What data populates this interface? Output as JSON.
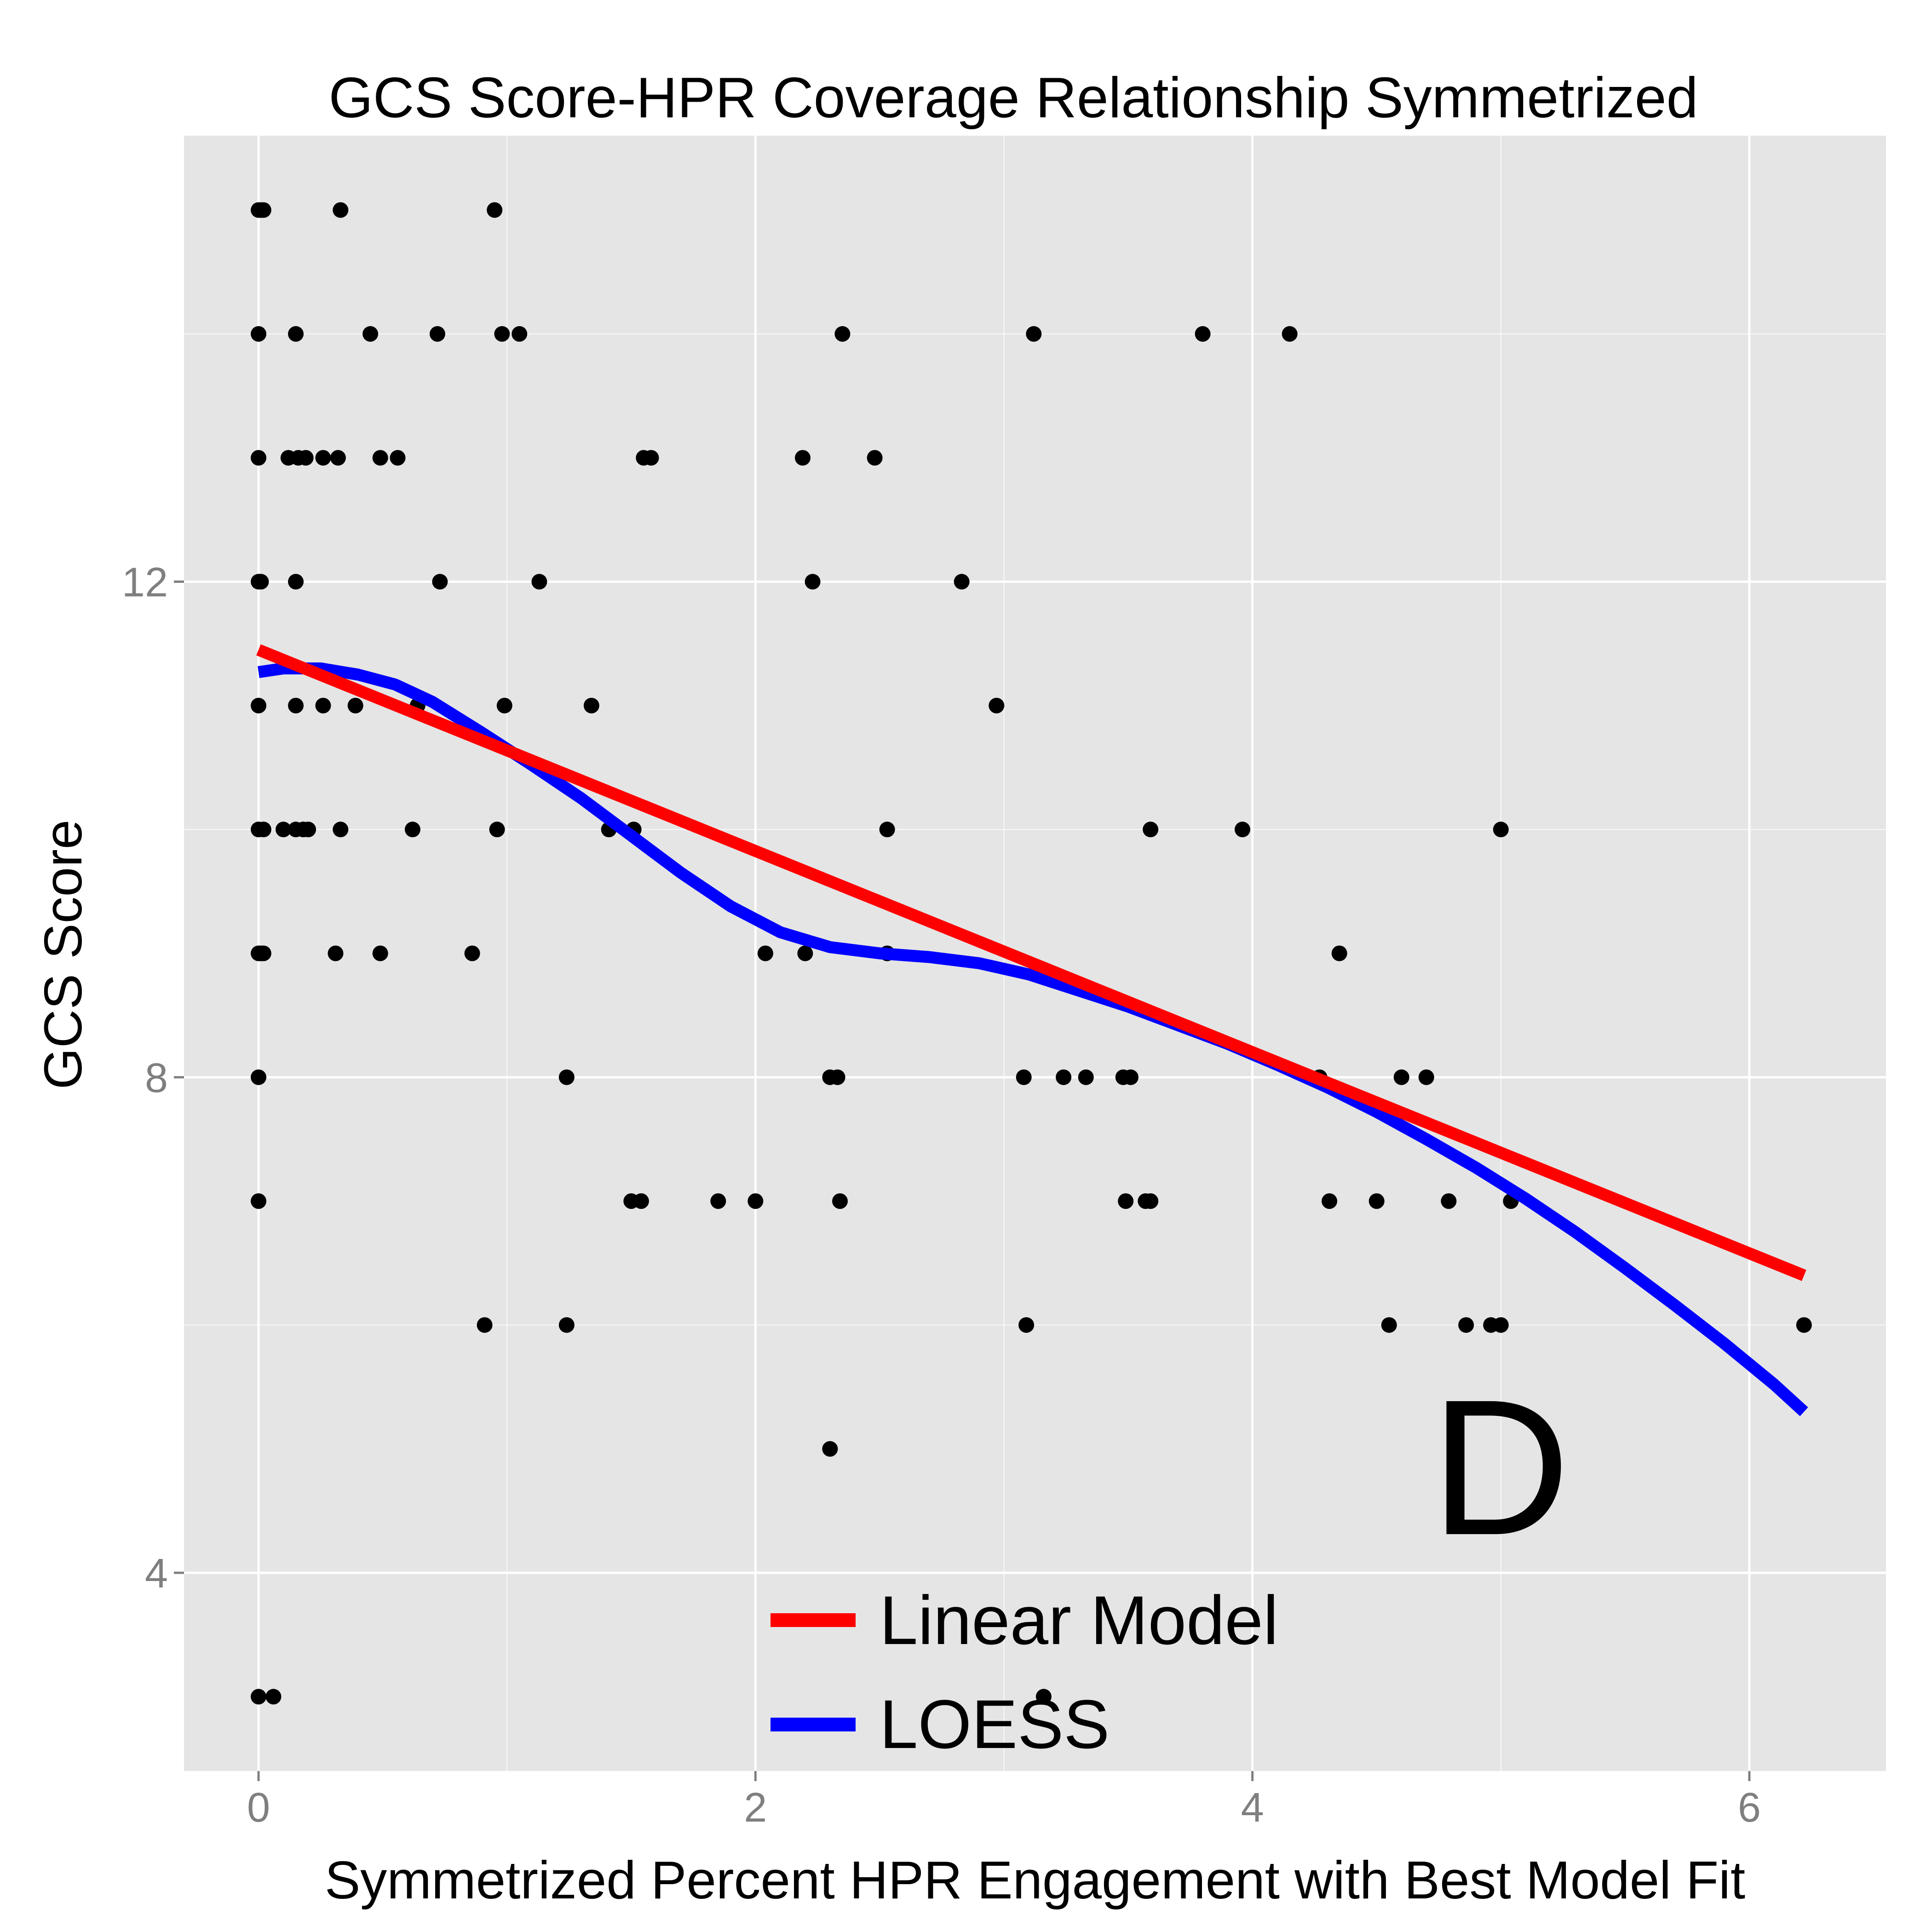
{
  "chart_data": {
    "type": "scatter",
    "title": "GCS Score-HPR Coverage Relationship Symmetrized",
    "xlabel": "Symmetrized Percent HPR Engagement with Best Model Fit",
    "ylabel": "GCS Score",
    "xlim": [
      -0.3,
      6.55
    ],
    "ylim": [
      2.4,
      15.6
    ],
    "x_ticks": [
      0,
      2,
      4,
      6
    ],
    "y_ticks": [
      4,
      8,
      12
    ],
    "grid": true,
    "panel_label": "D",
    "colors": {
      "panel_bg": "#e5e5e5",
      "grid": "#ffffff",
      "points": "#000000",
      "linear": "#ff0000",
      "loess": "#0000ff",
      "tick_text": "#7f7f7f"
    },
    "points": [
      [
        0.0,
        15
      ],
      [
        0.01,
        15
      ],
      [
        0.02,
        15
      ],
      [
        0.33,
        15
      ],
      [
        0.95,
        15
      ],
      [
        0.0,
        14
      ],
      [
        0.15,
        14
      ],
      [
        0.45,
        14
      ],
      [
        0.72,
        14
      ],
      [
        0.98,
        14
      ],
      [
        1.05,
        14
      ],
      [
        2.35,
        14
      ],
      [
        3.12,
        14
      ],
      [
        3.8,
        14
      ],
      [
        4.15,
        14
      ],
      [
        0.0,
        13
      ],
      [
        0.12,
        13
      ],
      [
        0.16,
        13
      ],
      [
        0.19,
        13
      ],
      [
        0.26,
        13
      ],
      [
        0.32,
        13
      ],
      [
        0.49,
        13
      ],
      [
        0.56,
        13
      ],
      [
        1.55,
        13
      ],
      [
        1.58,
        13
      ],
      [
        2.19,
        13
      ],
      [
        2.48,
        13
      ],
      [
        0.0,
        12
      ],
      [
        0.01,
        12
      ],
      [
        0.15,
        12
      ],
      [
        0.73,
        12
      ],
      [
        1.13,
        12
      ],
      [
        2.23,
        12
      ],
      [
        2.83,
        12
      ],
      [
        0.0,
        11
      ],
      [
        0.15,
        11
      ],
      [
        0.26,
        11
      ],
      [
        0.39,
        11
      ],
      [
        0.64,
        11
      ],
      [
        0.99,
        11
      ],
      [
        1.34,
        11
      ],
      [
        2.97,
        11
      ],
      [
        0.0,
        10
      ],
      [
        0.02,
        10
      ],
      [
        0.1,
        10
      ],
      [
        0.15,
        10
      ],
      [
        0.18,
        10
      ],
      [
        0.2,
        10
      ],
      [
        0.33,
        10
      ],
      [
        0.62,
        10
      ],
      [
        0.96,
        10
      ],
      [
        1.41,
        10
      ],
      [
        1.51,
        10
      ],
      [
        2.53,
        10
      ],
      [
        3.59,
        10
      ],
      [
        3.96,
        10
      ],
      [
        5.0,
        10
      ],
      [
        0.0,
        9
      ],
      [
        0.01,
        9
      ],
      [
        0.02,
        9
      ],
      [
        0.31,
        9
      ],
      [
        0.49,
        9
      ],
      [
        0.86,
        9
      ],
      [
        2.04,
        9
      ],
      [
        2.2,
        9
      ],
      [
        2.53,
        9
      ],
      [
        4.35,
        9
      ],
      [
        0.0,
        8
      ],
      [
        1.24,
        8
      ],
      [
        2.3,
        8
      ],
      [
        2.33,
        8
      ],
      [
        3.08,
        8
      ],
      [
        3.24,
        8
      ],
      [
        3.33,
        8
      ],
      [
        3.48,
        8
      ],
      [
        3.51,
        8
      ],
      [
        4.27,
        8
      ],
      [
        4.6,
        8
      ],
      [
        4.7,
        8
      ],
      [
        0.0,
        7
      ],
      [
        1.5,
        7
      ],
      [
        1.54,
        7
      ],
      [
        1.85,
        7
      ],
      [
        2.0,
        7
      ],
      [
        2.34,
        7
      ],
      [
        3.49,
        7
      ],
      [
        3.57,
        7
      ],
      [
        3.59,
        7
      ],
      [
        4.31,
        7
      ],
      [
        4.5,
        7
      ],
      [
        4.79,
        7
      ],
      [
        5.04,
        7
      ],
      [
        0.91,
        6
      ],
      [
        1.24,
        6
      ],
      [
        3.09,
        6
      ],
      [
        4.55,
        6
      ],
      [
        4.86,
        6
      ],
      [
        4.96,
        6
      ],
      [
        5.0,
        6
      ],
      [
        6.22,
        6
      ],
      [
        2.3,
        5
      ],
      [
        0.0,
        3
      ],
      [
        0.06,
        3
      ],
      [
        3.16,
        3
      ]
    ],
    "series": [
      {
        "name": "Linear Model",
        "x": [
          0.0,
          6.22
        ],
        "y": [
          11.45,
          6.4
        ]
      },
      {
        "name": "LOESS",
        "x": [
          0.0,
          0.1,
          0.25,
          0.4,
          0.55,
          0.7,
          0.9,
          1.1,
          1.3,
          1.5,
          1.7,
          1.9,
          2.1,
          2.3,
          2.5,
          2.7,
          2.9,
          3.1,
          3.3,
          3.5,
          3.7,
          3.9,
          4.1,
          4.3,
          4.5,
          4.7,
          4.9,
          5.1,
          5.3,
          5.5,
          5.7,
          5.9,
          6.1,
          6.22
        ],
        "y": [
          11.27,
          11.3,
          11.3,
          11.25,
          11.17,
          11.03,
          10.78,
          10.52,
          10.25,
          9.95,
          9.65,
          9.38,
          9.17,
          9.05,
          9.0,
          8.97,
          8.92,
          8.83,
          8.7,
          8.57,
          8.42,
          8.27,
          8.1,
          7.92,
          7.72,
          7.5,
          7.27,
          7.02,
          6.75,
          6.46,
          6.16,
          5.85,
          5.52,
          5.3
        ]
      }
    ]
  }
}
